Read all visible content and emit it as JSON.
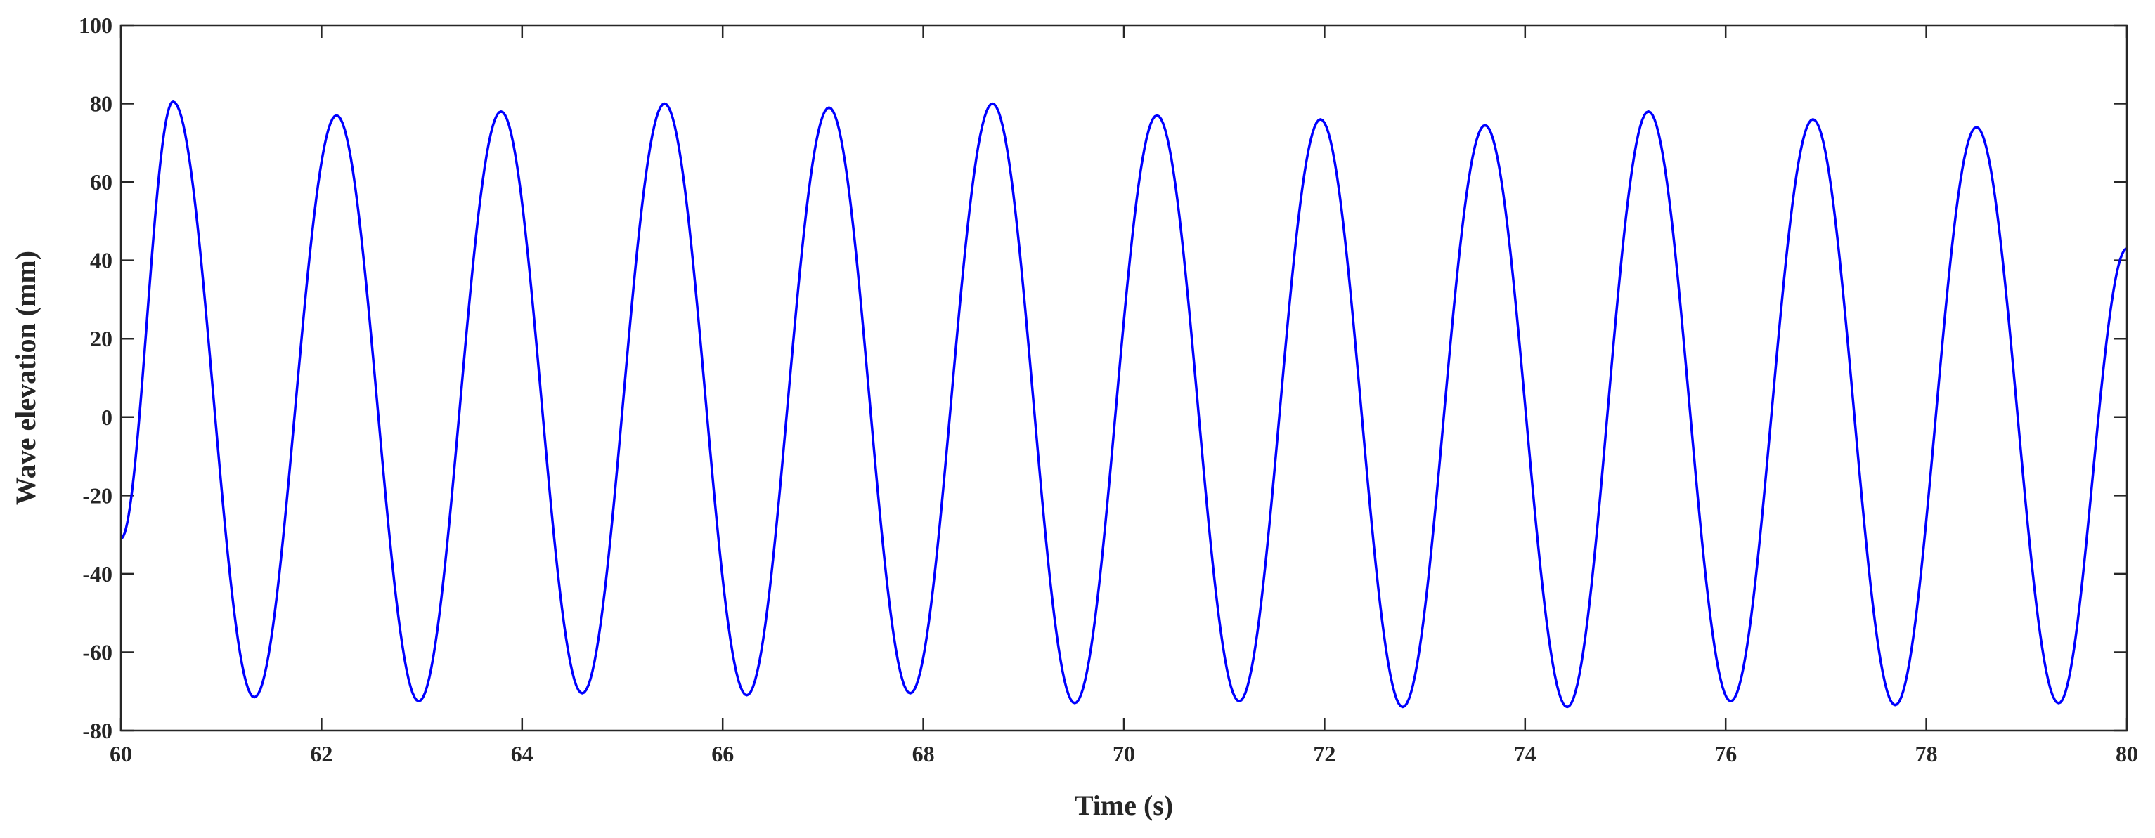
{
  "chart_data": {
    "type": "line",
    "title": "",
    "xlabel": "Time (s)",
    "ylabel": "Wave elevation (mm)",
    "xlim": [
      60,
      80
    ],
    "ylim": [
      -80,
      100
    ],
    "xticks": [
      60,
      62,
      64,
      66,
      68,
      70,
      72,
      74,
      76,
      78,
      80
    ],
    "yticks": [
      -80,
      -60,
      -40,
      -20,
      0,
      20,
      40,
      60,
      80,
      100
    ],
    "xtick_labels": [
      "60",
      "62",
      "64",
      "66",
      "68",
      "70",
      "72",
      "74",
      "76",
      "78",
      "80"
    ],
    "ytick_labels": [
      "-80",
      "-60",
      "-40",
      "-20",
      "0",
      "20",
      "40",
      "60",
      "80",
      "100"
    ],
    "grid": false,
    "legend": "none",
    "line_color": "#0000ff",
    "series": [
      {
        "period_s": 1.64,
        "start": {
          "x": 60.0,
          "y": -31
        },
        "end": {
          "x": 80.0,
          "y": 43
        },
        "extrema": [
          {
            "x": 60.52,
            "y": 80.5
          },
          {
            "x": 61.33,
            "y": -71.5
          },
          {
            "x": 62.15,
            "y": 77
          },
          {
            "x": 62.97,
            "y": -72.5
          },
          {
            "x": 63.79,
            "y": 78
          },
          {
            "x": 64.6,
            "y": -70.5
          },
          {
            "x": 65.42,
            "y": 80
          },
          {
            "x": 66.24,
            "y": -71
          },
          {
            "x": 67.06,
            "y": 79
          },
          {
            "x": 67.87,
            "y": -70.5
          },
          {
            "x": 68.69,
            "y": 80
          },
          {
            "x": 69.51,
            "y": -73
          },
          {
            "x": 70.33,
            "y": 77
          },
          {
            "x": 71.15,
            "y": -72.5
          },
          {
            "x": 71.96,
            "y": 76
          },
          {
            "x": 72.78,
            "y": -74
          },
          {
            "x": 73.6,
            "y": 74.5
          },
          {
            "x": 74.42,
            "y": -74
          },
          {
            "x": 75.23,
            "y": 78
          },
          {
            "x": 76.05,
            "y": -72.5
          },
          {
            "x": 76.87,
            "y": 76
          },
          {
            "x": 77.69,
            "y": -73.5
          },
          {
            "x": 78.5,
            "y": 74
          },
          {
            "x": 79.32,
            "y": -73
          }
        ]
      }
    ]
  }
}
